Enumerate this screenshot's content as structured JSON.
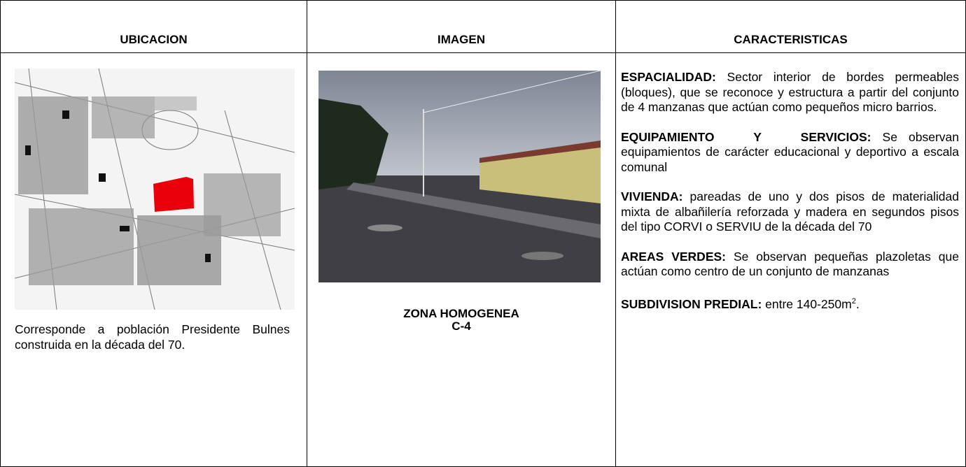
{
  "table": {
    "headers": [
      "UBICACION",
      "IMAGEN",
      "CARACTERISTICAS"
    ]
  },
  "ubicacion": {
    "text": "Corresponde a población Presidente Bulnes construida en la década del 70."
  },
  "imagen": {
    "caption": [
      "ZONA HOMOGENEA",
      "C-4"
    ]
  },
  "caracteristicas": [
    {
      "label": "ESPACIALIDAD:",
      "text": "Sector interior de bordes permeables (bloques), que se reconoce y estructura a partir del conjunto de 4 manzanas que actúan como pequeños micro barrios."
    },
    {
      "label": "EQUIPAMIENTO Y SERVICIOS:",
      "text": "Se observan equipamientos de carácter educacional y deportivo a escala comunal"
    },
    {
      "label": "VIVIENDA:",
      "text": "pareadas de uno y dos pisos de materialidad mixta de albañilería reforzada y madera en segundos pisos del tipo CORVI o SERVIU de la década del 70"
    },
    {
      "label": "AREAS VERDES:",
      "text": "Se observan pequeñas plazoletas que actúan como centro de un conjunto de manzanas"
    },
    {
      "label": "SUBDIVISION PREDIAL:",
      "text": "entre 140-250m",
      "sup": "2",
      "tail": "."
    }
  ]
}
